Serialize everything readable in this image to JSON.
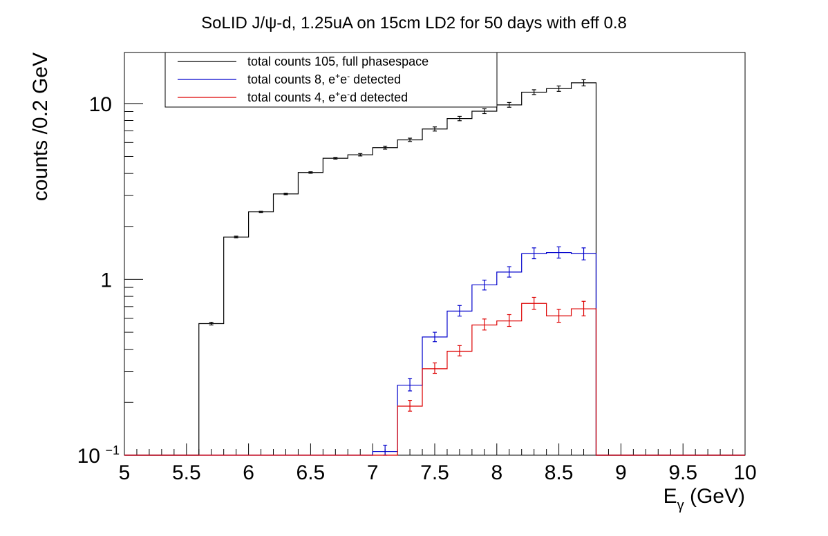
{
  "chart_data": {
    "type": "histogram",
    "title": "SoLID J/ψ-d, 1.25uA on 15cm LD2 for 50 days with eff 0.8",
    "xlabel": "Eγ (GeV)",
    "ylabel": "counts /0.2 GeV",
    "xlim": [
      5,
      10
    ],
    "ylim": [
      0.1,
      19.5
    ],
    "yscale": "log",
    "bin_width": 0.2,
    "grid": false,
    "legend_position": "top-left",
    "x_tick_labels": [
      "5",
      "5.5",
      "6",
      "6.5",
      "7",
      "7.5",
      "8",
      "8.5",
      "9",
      "9.5",
      "10"
    ],
    "y_tick_labels": [
      {
        "value": 0.1,
        "mantissa": "10",
        "exponent": "−1"
      },
      {
        "value": 1,
        "mantissa": "1",
        "exponent": ""
      },
      {
        "value": 10,
        "mantissa": "10",
        "exponent": ""
      }
    ],
    "series": [
      {
        "name": "total counts 105, full phasespace",
        "color": "#000000",
        "bins": [
          {
            "x_low": 5.6,
            "value": 0.56,
            "err_low": 0.55,
            "err_high": 0.57
          },
          {
            "x_low": 5.8,
            "value": 1.74,
            "err_low": 1.72,
            "err_high": 1.76
          },
          {
            "x_low": 6.0,
            "value": 2.42,
            "err_low": 2.4,
            "err_high": 2.44
          },
          {
            "x_low": 6.2,
            "value": 3.06,
            "err_low": 3.03,
            "err_high": 3.09
          },
          {
            "x_low": 6.4,
            "value": 4.05,
            "err_low": 4.01,
            "err_high": 4.09
          },
          {
            "x_low": 6.6,
            "value": 4.88,
            "err_low": 4.83,
            "err_high": 4.93
          },
          {
            "x_low": 6.8,
            "value": 5.11,
            "err_low": 5.03,
            "err_high": 5.19
          },
          {
            "x_low": 7.0,
            "value": 5.61,
            "err_low": 5.5,
            "err_high": 5.72
          },
          {
            "x_low": 7.2,
            "value": 6.21,
            "err_low": 6.08,
            "err_high": 6.35
          },
          {
            "x_low": 7.4,
            "value": 7.16,
            "err_low": 6.97,
            "err_high": 7.36
          },
          {
            "x_low": 7.6,
            "value": 8.21,
            "err_low": 7.98,
            "err_high": 8.45
          },
          {
            "x_low": 7.8,
            "value": 9.04,
            "err_low": 8.76,
            "err_high": 9.33
          },
          {
            "x_low": 8.0,
            "value": 9.82,
            "err_low": 9.52,
            "err_high": 10.13
          },
          {
            "x_low": 8.2,
            "value": 11.6,
            "err_low": 11.24,
            "err_high": 11.97
          },
          {
            "x_low": 8.4,
            "value": 12.15,
            "err_low": 11.72,
            "err_high": 12.58
          },
          {
            "x_low": 8.6,
            "value": 13.11,
            "err_low": 12.59,
            "err_high": 13.65
          }
        ]
      },
      {
        "name": "total counts 8, e⁺e⁻ detected",
        "color": "#0000cc",
        "bins": [
          {
            "x_low": 7.0,
            "value": 0.105,
            "err_low": 0.099,
            "err_high": 0.114
          },
          {
            "x_low": 7.2,
            "value": 0.25,
            "err_low": 0.232,
            "err_high": 0.273
          },
          {
            "x_low": 7.4,
            "value": 0.47,
            "err_low": 0.442,
            "err_high": 0.5
          },
          {
            "x_low": 7.6,
            "value": 0.66,
            "err_low": 0.618,
            "err_high": 0.71
          },
          {
            "x_low": 7.8,
            "value": 0.93,
            "err_low": 0.87,
            "err_high": 0.99
          },
          {
            "x_low": 8.0,
            "value": 1.1,
            "err_low": 1.03,
            "err_high": 1.18
          },
          {
            "x_low": 8.2,
            "value": 1.4,
            "err_low": 1.31,
            "err_high": 1.51
          },
          {
            "x_low": 8.4,
            "value": 1.42,
            "err_low": 1.32,
            "err_high": 1.53
          },
          {
            "x_low": 8.6,
            "value": 1.4,
            "err_low": 1.29,
            "err_high": 1.51
          }
        ]
      },
      {
        "name": "total counts 4, e⁺e⁻d detected",
        "color": "#dd0000",
        "bins": [
          {
            "x_low": 7.2,
            "value": 0.19,
            "err_low": 0.178,
            "err_high": 0.205
          },
          {
            "x_low": 7.4,
            "value": 0.31,
            "err_low": 0.292,
            "err_high": 0.335
          },
          {
            "x_low": 7.6,
            "value": 0.39,
            "err_low": 0.367,
            "err_high": 0.42
          },
          {
            "x_low": 7.8,
            "value": 0.55,
            "err_low": 0.515,
            "err_high": 0.595
          },
          {
            "x_low": 8.0,
            "value": 0.58,
            "err_low": 0.54,
            "err_high": 0.63
          },
          {
            "x_low": 8.2,
            "value": 0.73,
            "err_low": 0.675,
            "err_high": 0.79
          },
          {
            "x_low": 8.4,
            "value": 0.62,
            "err_low": 0.57,
            "err_high": 0.675
          },
          {
            "x_low": 8.6,
            "value": 0.68,
            "err_low": 0.62,
            "err_high": 0.75
          }
        ]
      }
    ]
  }
}
